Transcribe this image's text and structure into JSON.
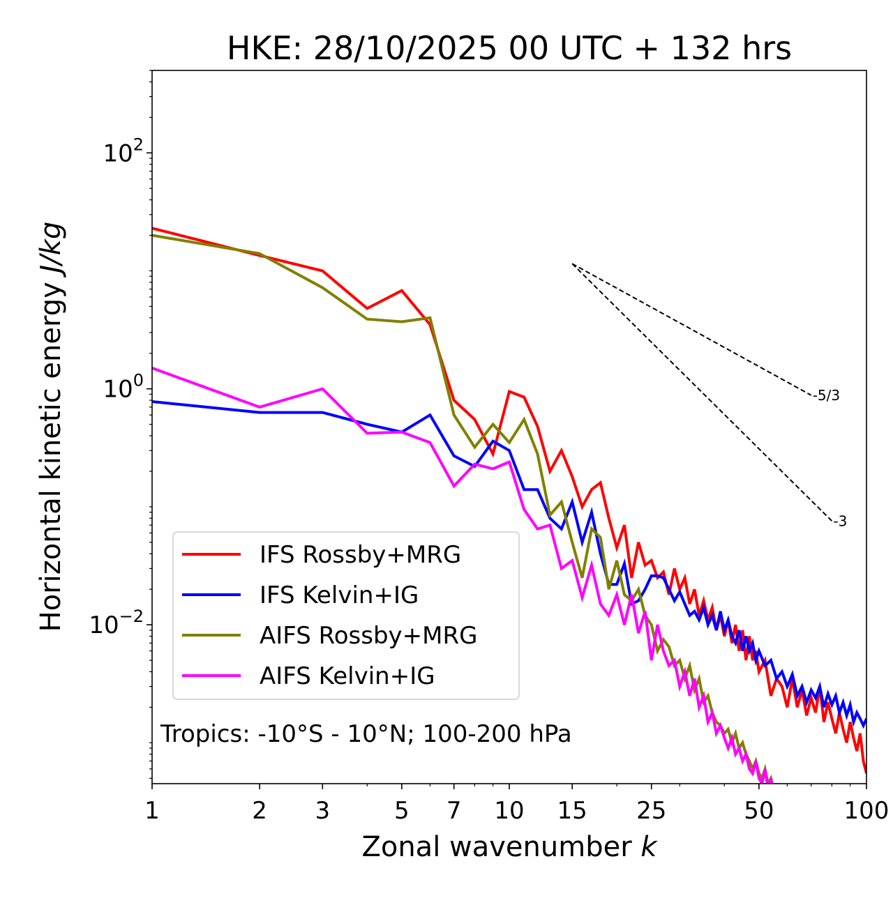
{
  "chart_data": {
    "type": "line",
    "title": "HKE: 28/10/2025 00 UTC + 132 hrs",
    "xlabel": "Zonal wavenumber",
    "xlabel_italic": "k",
    "ylabel": "Horizontal kinetic energy",
    "ylabel_italic": "J/kg",
    "xscale": "log",
    "yscale": "log",
    "xlim": [
      1,
      100
    ],
    "ylim": [
      0.00045,
      500
    ],
    "xticks": [
      {
        "value": 1,
        "label": "1"
      },
      {
        "value": 2,
        "label": "2"
      },
      {
        "value": 3,
        "label": "3"
      },
      {
        "value": 5,
        "label": "5"
      },
      {
        "value": 7,
        "label": "7"
      },
      {
        "value": 10,
        "label": "10"
      },
      {
        "value": 15,
        "label": "15"
      },
      {
        "value": 25,
        "label": "25"
      },
      {
        "value": 50,
        "label": "50"
      },
      {
        "value": 100,
        "label": "100"
      }
    ],
    "yticks": [
      {
        "value": 0.01,
        "base": "10",
        "exp": "−2"
      },
      {
        "value": 1,
        "base": "10",
        "exp": "0"
      },
      {
        "value": 100,
        "base": "10",
        "exp": "2"
      }
    ],
    "annotation": "Tropics: -10°S - 10°N; 100-200 hPa",
    "legend_position": "lower-left",
    "reference_lines": [
      {
        "label": "-5/3",
        "slope": -1.6667,
        "x0": 15,
        "y0": 11.5,
        "x1": 70
      },
      {
        "label": "-3",
        "slope": -3,
        "x0": 15,
        "y0": 11.5,
        "x1": 80
      }
    ],
    "series": [
      {
        "name": "IFS Rossby+MRG",
        "color": "#ff0000",
        "x": [
          1,
          2,
          3,
          4,
          5,
          6,
          7,
          8,
          9,
          10,
          11,
          12,
          13,
          14,
          15,
          16,
          17,
          18,
          19,
          20,
          21,
          22,
          23,
          24,
          25,
          26,
          27,
          28,
          29,
          30,
          31,
          32,
          33,
          34,
          35,
          36,
          37,
          38,
          39,
          40,
          41,
          42,
          43,
          44,
          45,
          46,
          47,
          48,
          49,
          50,
          52,
          54,
          56,
          58,
          60,
          62,
          64,
          66,
          68,
          70,
          72,
          74,
          76,
          78,
          80,
          82,
          84,
          86,
          88,
          90,
          92,
          94,
          96,
          98,
          100
        ],
        "y": [
          23,
          13.5,
          10,
          4.8,
          6.8,
          3.5,
          0.8,
          0.55,
          0.28,
          0.95,
          0.85,
          0.48,
          0.2,
          0.3,
          0.18,
          0.1,
          0.14,
          0.16,
          0.08,
          0.045,
          0.07,
          0.025,
          0.05,
          0.032,
          0.035,
          0.025,
          0.028,
          0.018,
          0.03,
          0.02,
          0.025,
          0.015,
          0.02,
          0.012,
          0.016,
          0.011,
          0.014,
          0.009,
          0.012,
          0.008,
          0.011,
          0.007,
          0.01,
          0.006,
          0.009,
          0.005,
          0.008,
          0.005,
          0.006,
          0.004,
          0.005,
          0.0025,
          0.0035,
          0.003,
          0.002,
          0.0035,
          0.002,
          0.0028,
          0.0017,
          0.0024,
          0.0018,
          0.003,
          0.0015,
          0.0022,
          0.0016,
          0.0012,
          0.0018,
          0.0013,
          0.001,
          0.0015,
          0.0011,
          0.00085,
          0.0012,
          0.0007,
          0.00055
        ]
      },
      {
        "name": "IFS Kelvin+IG",
        "color": "#0000ff",
        "x": [
          1,
          2,
          3,
          4,
          5,
          6,
          7,
          8,
          9,
          10,
          11,
          12,
          13,
          14,
          15,
          16,
          17,
          18,
          19,
          20,
          21,
          22,
          23,
          24,
          25,
          26,
          27,
          28,
          29,
          30,
          31,
          32,
          33,
          34,
          35,
          36,
          37,
          38,
          39,
          40,
          41,
          42,
          43,
          44,
          45,
          46,
          47,
          48,
          49,
          50,
          52,
          54,
          56,
          58,
          60,
          62,
          64,
          66,
          68,
          70,
          72,
          74,
          76,
          78,
          80,
          82,
          84,
          86,
          88,
          90,
          92,
          94,
          96,
          98,
          100
        ],
        "y": [
          0.78,
          0.63,
          0.63,
          0.5,
          0.43,
          0.6,
          0.27,
          0.22,
          0.36,
          0.3,
          0.14,
          0.14,
          0.08,
          0.065,
          0.11,
          0.05,
          0.09,
          0.04,
          0.022,
          0.022,
          0.033,
          0.015,
          0.016,
          0.02,
          0.026,
          0.026,
          0.025,
          0.02,
          0.016,
          0.019,
          0.015,
          0.012,
          0.013,
          0.011,
          0.014,
          0.01,
          0.012,
          0.009,
          0.013,
          0.009,
          0.011,
          0.008,
          0.007,
          0.009,
          0.006,
          0.008,
          0.006,
          0.007,
          0.005,
          0.006,
          0.0045,
          0.005,
          0.0035,
          0.004,
          0.003,
          0.0038,
          0.0025,
          0.003,
          0.0022,
          0.0028,
          0.0024,
          0.003,
          0.002,
          0.0026,
          0.0021,
          0.0025,
          0.0018,
          0.0022,
          0.0017,
          0.0021,
          0.0015,
          0.0018,
          0.0016,
          0.0014,
          0.0016
        ]
      },
      {
        "name": "AIFS Rossby+MRG",
        "color": "#808000",
        "x": [
          1,
          2,
          3,
          4,
          5,
          6,
          7,
          8,
          9,
          10,
          11,
          12,
          13,
          14,
          15,
          16,
          17,
          18,
          19,
          20,
          21,
          22,
          23,
          24,
          25,
          26,
          27,
          28,
          29,
          30,
          31,
          32,
          33,
          34,
          35,
          36,
          37,
          38,
          39,
          40,
          41,
          42,
          43,
          44,
          45,
          46,
          47,
          48,
          49,
          50,
          51,
          52,
          53,
          54,
          55,
          56
        ],
        "y": [
          20,
          14,
          7.2,
          3.9,
          3.7,
          4,
          0.6,
          0.32,
          0.5,
          0.35,
          0.55,
          0.28,
          0.085,
          0.11,
          0.05,
          0.025,
          0.065,
          0.055,
          0.02,
          0.035,
          0.018,
          0.016,
          0.02,
          0.012,
          0.01,
          0.006,
          0.0075,
          0.0065,
          0.0045,
          0.005,
          0.0035,
          0.0045,
          0.0028,
          0.0035,
          0.0022,
          0.0025,
          0.0018,
          0.0015,
          0.0014,
          0.0012,
          0.0013,
          0.001,
          0.0012,
          0.0009,
          0.001,
          0.0008,
          0.0007,
          0.0006,
          0.0007,
          0.00055,
          0.0005,
          0.0006,
          0.00045,
          0.0005,
          0.0004,
          0.00045
        ]
      },
      {
        "name": "AIFS Kelvin+IG",
        "color": "#ff00ff",
        "x": [
          1,
          2,
          3,
          4,
          5,
          6,
          7,
          8,
          9,
          10,
          11,
          12,
          13,
          14,
          15,
          16,
          17,
          18,
          19,
          20,
          21,
          22,
          23,
          24,
          25,
          26,
          27,
          28,
          29,
          30,
          31,
          32,
          33,
          34,
          35,
          36,
          37,
          38,
          39,
          40,
          41,
          42,
          43,
          44,
          45,
          46,
          47,
          48,
          49,
          50,
          51,
          52,
          53,
          54,
          55,
          56
        ],
        "y": [
          1.5,
          0.7,
          1.0,
          0.42,
          0.43,
          0.35,
          0.15,
          0.23,
          0.21,
          0.24,
          0.095,
          0.065,
          0.07,
          0.03,
          0.035,
          0.017,
          0.032,
          0.015,
          0.012,
          0.018,
          0.01,
          0.018,
          0.0085,
          0.013,
          0.005,
          0.01,
          0.006,
          0.0045,
          0.005,
          0.003,
          0.004,
          0.0025,
          0.0035,
          0.002,
          0.0025,
          0.0015,
          0.0018,
          0.0012,
          0.0014,
          0.0011,
          0.0009,
          0.0011,
          0.0008,
          0.0009,
          0.0007,
          0.0008,
          0.0006,
          0.00055,
          0.0007,
          0.0005,
          0.00045,
          0.0006,
          0.0004,
          0.0005,
          0.00035,
          0.0004
        ]
      }
    ]
  }
}
